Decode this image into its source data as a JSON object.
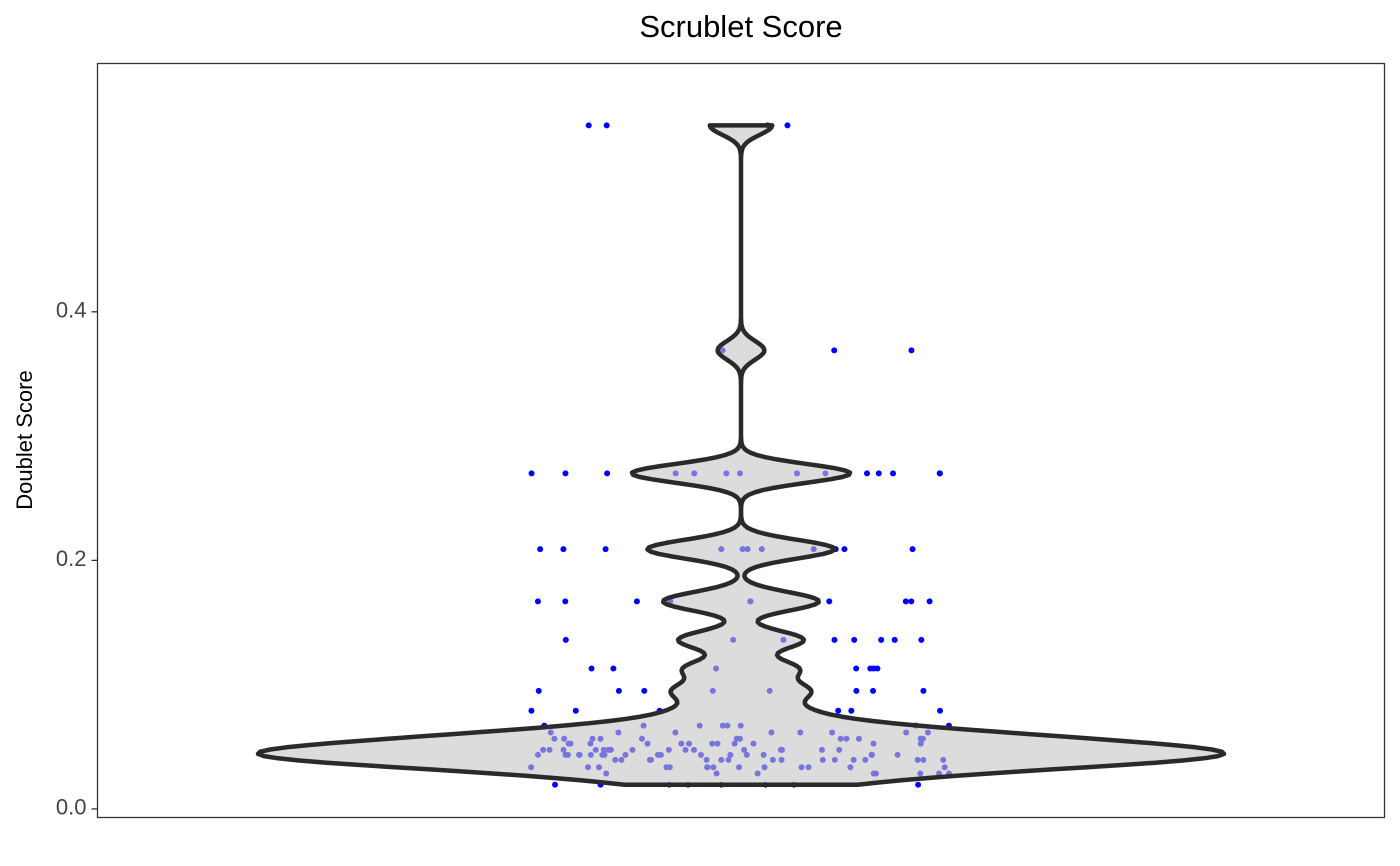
{
  "chart_data": {
    "type": "violin",
    "title": "Scrublet Score",
    "ylabel": "Doublet Score",
    "ylim": [
      -0.0069,
      0.5998
    ],
    "yticks": [
      {
        "value": 0,
        "label": "0.0"
      },
      0.2,
      0.4
    ],
    "point_color": "#0000ff",
    "fill": "#c4c4c4",
    "outline": "#2a2a2a",
    "values": [
      0.0195,
      0.0195,
      0.0195,
      0.0195,
      0.0195,
      0.0195,
      0.0195,
      0.0195,
      0.0285,
      0.0285,
      0.0285,
      0.0285,
      0.0285,
      0.0285,
      0.0285,
      0.0285,
      0.0335,
      0.0335,
      0.0335,
      0.0335,
      0.0335,
      0.0335,
      0.0335,
      0.0335,
      0.0335,
      0.0335,
      0.0335,
      0.0335,
      0.0335,
      0.0335,
      0.0395,
      0.0395,
      0.0395,
      0.0395,
      0.0395,
      0.0395,
      0.0395,
      0.0395,
      0.0395,
      0.0395,
      0.0395,
      0.0395,
      0.0395,
      0.0395,
      0.0395,
      0.0395,
      0.0435,
      0.0435,
      0.0435,
      0.0435,
      0.0435,
      0.0435,
      0.0435,
      0.0435,
      0.0435,
      0.0435,
      0.0435,
      0.0435,
      0.0435,
      0.0435,
      0.0435,
      0.0435,
      0.0435,
      0.0435,
      0.0475,
      0.0475,
      0.0475,
      0.0475,
      0.0475,
      0.0475,
      0.0475,
      0.0475,
      0.0475,
      0.0475,
      0.0475,
      0.0475,
      0.0475,
      0.0475,
      0.0475,
      0.0475,
      0.0525,
      0.0525,
      0.0525,
      0.0525,
      0.0525,
      0.0525,
      0.0525,
      0.0525,
      0.0525,
      0.0525,
      0.0525,
      0.0525,
      0.0565,
      0.0565,
      0.0565,
      0.0565,
      0.0565,
      0.0565,
      0.0565,
      0.0565,
      0.0565,
      0.0565,
      0.0565,
      0.0565,
      0.0615,
      0.0615,
      0.0615,
      0.0615,
      0.0615,
      0.0615,
      0.0615,
      0.0615,
      0.067,
      0.067,
      0.067,
      0.067,
      0.067,
      0.067,
      0.067,
      0.067,
      0.079,
      0.079,
      0.079,
      0.079,
      0.079,
      0.079,
      0.095,
      0.095,
      0.095,
      0.095,
      0.095,
      0.095,
      0.095,
      0.095,
      0.113,
      0.113,
      0.113,
      0.113,
      0.113,
      0.113,
      0.113,
      0.136,
      0.136,
      0.136,
      0.136,
      0.136,
      0.136,
      0.136,
      0.136,
      0.167,
      0.167,
      0.167,
      0.167,
      0.167,
      0.167,
      0.167,
      0.167,
      0.167,
      0.167,
      0.209,
      0.209,
      0.209,
      0.209,
      0.209,
      0.209,
      0.209,
      0.209,
      0.209,
      0.209,
      0.209,
      0.209,
      0.27,
      0.27,
      0.27,
      0.27,
      0.27,
      0.27,
      0.27,
      0.27,
      0.27,
      0.27,
      0.27,
      0.27,
      0.27,
      0.27,
      0.369,
      0.369,
      0.369,
      0.55,
      0.55,
      0.55,
      0.55
    ]
  }
}
